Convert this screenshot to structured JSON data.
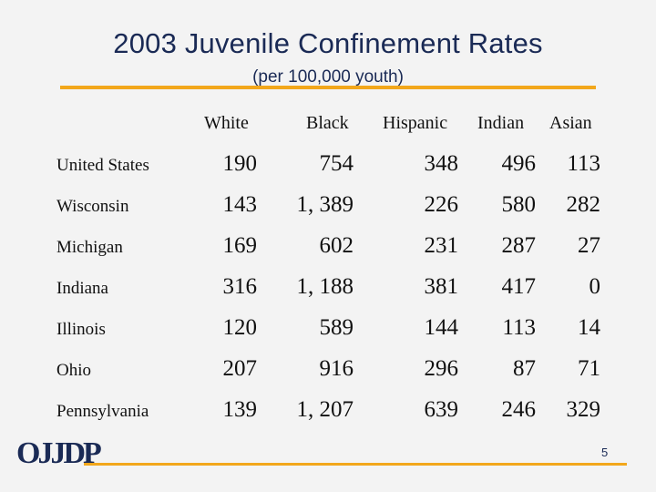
{
  "slide": {
    "title": "2003 Juvenile Confinement Rates",
    "subtitle": "(per 100,000 youth)",
    "page_number": "5",
    "logo_text": "OJJDP",
    "accent_color": "#f2a71b",
    "title_color": "#1a2a55"
  },
  "table": {
    "headers": [
      "White",
      "Black",
      "Hispanic",
      "Indian",
      "Asian"
    ],
    "rows": [
      {
        "state": "United States",
        "values": [
          "190",
          "754",
          "348",
          "496",
          "113"
        ]
      },
      {
        "state": "Wisconsin",
        "values": [
          "143",
          "1, 389",
          "226",
          "580",
          "282"
        ]
      },
      {
        "state": "Michigan",
        "values": [
          "169",
          "602",
          "231",
          "287",
          "27"
        ]
      },
      {
        "state": "Indiana",
        "values": [
          "316",
          "1, 188",
          "381",
          "417",
          "0"
        ]
      },
      {
        "state": "Illinois",
        "values": [
          "120",
          "589",
          "144",
          "113",
          "14"
        ]
      },
      {
        "state": "Ohio",
        "values": [
          "207",
          "916",
          "296",
          "87",
          "71"
        ]
      },
      {
        "state": "Pennsylvania",
        "values": [
          "139",
          "1, 207",
          "639",
          "246",
          "329"
        ]
      }
    ]
  }
}
